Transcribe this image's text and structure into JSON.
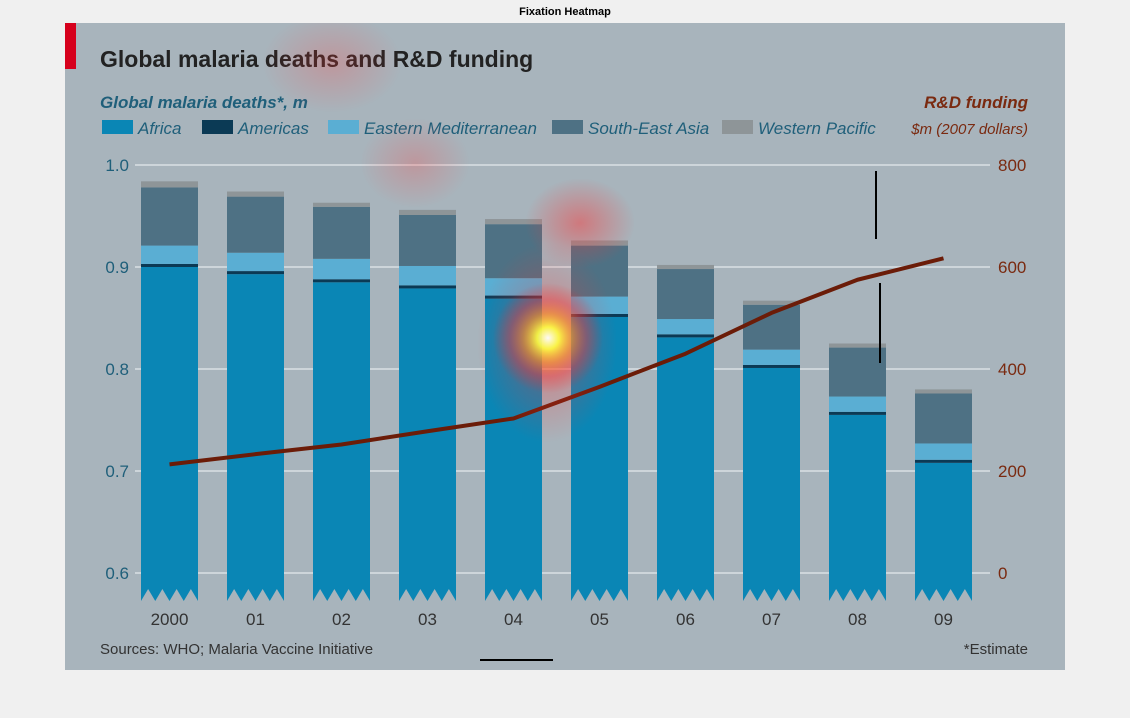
{
  "figure": {
    "title": "Fixation Heatmap"
  },
  "chart_data": {
    "type": "bar",
    "title": "Global malaria deaths and R&D funding",
    "left_axis_title": "Global malaria deaths*, m",
    "right_axis_title_line1": "R&D funding",
    "right_axis_title_line2": "$m (2007 dollars)",
    "categories": [
      "2000",
      "01",
      "02",
      "03",
      "04",
      "05",
      "06",
      "07",
      "08",
      "09"
    ],
    "y_left_ticks": [
      "1.0",
      "0.9",
      "0.8",
      "0.7",
      "0.6"
    ],
    "y_right_ticks": [
      "800",
      "600",
      "400",
      "200",
      "0"
    ],
    "ylim_left": [
      0.6,
      1.0
    ],
    "ylim_right": [
      0,
      800
    ],
    "stacked": true,
    "series": [
      {
        "name": "Africa",
        "color": "#0a86b5",
        "values": [
          0.9,
          0.893,
          0.885,
          0.879,
          0.869,
          0.851,
          0.831,
          0.801,
          0.755,
          0.708
        ]
      },
      {
        "name": "Americas",
        "color": "#0b3a55",
        "values": [
          0.003,
          0.003,
          0.003,
          0.003,
          0.003,
          0.003,
          0.003,
          0.003,
          0.003,
          0.003
        ]
      },
      {
        "name": "Eastern Mediterranean",
        "color": "#5aaed3",
        "values": [
          0.018,
          0.018,
          0.02,
          0.019,
          0.017,
          0.017,
          0.015,
          0.015,
          0.015,
          0.016
        ]
      },
      {
        "name": "South-East Asia",
        "color": "#4e7184",
        "values": [
          0.057,
          0.055,
          0.051,
          0.05,
          0.053,
          0.05,
          0.049,
          0.044,
          0.048,
          0.049
        ]
      },
      {
        "name": "Western Pacific",
        "color": "#8e9598",
        "values": [
          0.006,
          0.005,
          0.004,
          0.005,
          0.005,
          0.005,
          0.004,
          0.004,
          0.004,
          0.004
        ]
      }
    ],
    "line_series": {
      "name": "R&D funding",
      "color": "#6b1c08",
      "values": [
        213,
        233,
        252,
        278,
        303,
        365,
        430,
        510,
        575,
        617
      ]
    },
    "source": "Sources: WHO; Malaria Vaccine Initiative",
    "footnote": "*Estimate",
    "grid": true,
    "legend_placement": "top-left",
    "colors": {
      "panel_bg": "#a8b4bc",
      "title_text": "#222222",
      "left_axis_text": "#1f5f7a",
      "right_axis_text": "#7a2a10",
      "accent_red": "#d6001c",
      "gridline": "#d9e0e4"
    }
  }
}
